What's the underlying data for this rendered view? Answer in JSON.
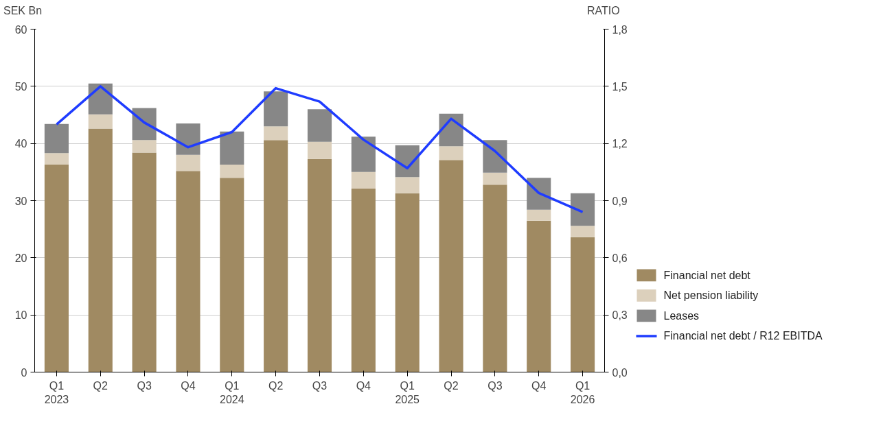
{
  "chart_data": {
    "type": "bar",
    "stacked": true,
    "categories": [
      "Q1\n2023",
      "Q2",
      "Q3",
      "Q4",
      "Q1\n2024",
      "Q2",
      "Q3",
      "Q4",
      "Q1\n2025",
      "Q2",
      "Q3",
      "Q4",
      "Q1\n2026"
    ],
    "ylabel": "SEK Bn",
    "y2label": "RATIO",
    "series": [
      {
        "name": "Financial net debt",
        "color": "#a08a62",
        "values": [
          36.3,
          42.6,
          38.4,
          35.2,
          34.0,
          40.6,
          37.3,
          32.1,
          31.3,
          37.1,
          32.8,
          26.5,
          23.6
        ]
      },
      {
        "name": "Net pension liability",
        "color": "#dcd0bc",
        "values": [
          2.0,
          2.5,
          2.2,
          2.8,
          2.3,
          2.4,
          3.0,
          2.9,
          2.8,
          2.4,
          2.1,
          1.9,
          2.0
        ]
      },
      {
        "name": "Leases",
        "color": "#878787",
        "values": [
          5.1,
          5.4,
          5.6,
          5.5,
          5.8,
          6.1,
          5.7,
          6.2,
          5.6,
          5.7,
          5.7,
          5.6,
          5.7
        ]
      },
      {
        "name": "Financial net debt / R12 EBITDA",
        "type": "line",
        "axis": "y2",
        "color": "#1f3cff",
        "values": [
          1.3,
          1.5,
          1.31,
          1.18,
          1.26,
          1.49,
          1.42,
          1.22,
          1.07,
          1.33,
          1.16,
          0.94,
          0.84
        ]
      }
    ],
    "ylim": [
      0,
      60
    ],
    "yticks": [
      0,
      10,
      20,
      30,
      40,
      50,
      60
    ],
    "y2lim": [
      0,
      1.8
    ],
    "y2ticks": [
      {
        "value": 0,
        "label": "0,0"
      },
      {
        "value": 0.3,
        "label": "0,3"
      },
      {
        "value": 0.6,
        "label": "0,6"
      },
      {
        "value": 0.9,
        "label": "0,9"
      },
      {
        "value": 1.2,
        "label": "1,2"
      },
      {
        "value": 1.5,
        "label": "1,5"
      },
      {
        "value": 1.8,
        "label": "1,8"
      }
    ],
    "grid": "y",
    "legend": "bottom right",
    "line_style": "solid",
    "marker": "none"
  }
}
